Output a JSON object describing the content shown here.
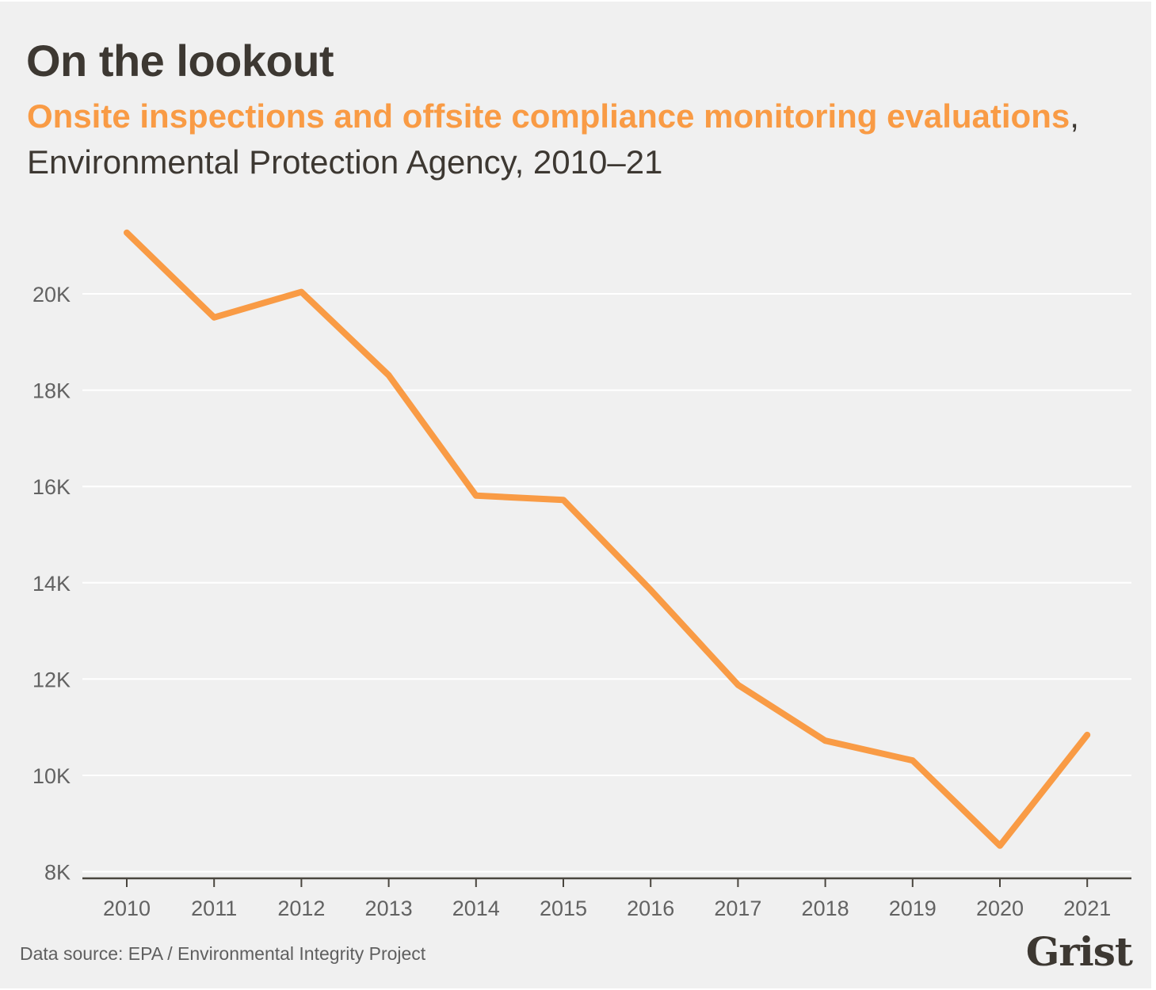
{
  "header": {
    "title": "On the lookout",
    "subtitle_highlight": "Onsite inspections and offsite compliance monitoring evaluations",
    "subtitle_rest": ", Environmental Protection Agency, 2010–21"
  },
  "footer": {
    "source": "Data source: EPA / Environmental Integrity Project",
    "logo": "Grist"
  },
  "colors": {
    "background": "#f0f0f0",
    "line": "#f99b45",
    "text": "#3d3832",
    "gridline": "#ffffff",
    "axis": "#4a463f"
  },
  "chart_data": {
    "type": "line",
    "title": "On the lookout",
    "subtitle": "Onsite inspections and offsite compliance monitoring evaluations, Environmental Protection Agency, 2010–21",
    "xlabel": "",
    "ylabel": "",
    "x": [
      "2010",
      "2011",
      "2012",
      "2013",
      "2014",
      "2015",
      "2016",
      "2017",
      "2018",
      "2019",
      "2020",
      "2021"
    ],
    "series": [
      {
        "name": "Onsite inspections and offsite compliance monitoring evaluations",
        "values": [
          21270,
          19510,
          20040,
          18310,
          15810,
          15720,
          13850,
          11880,
          10720,
          10310,
          8540,
          10840
        ]
      }
    ],
    "ylim": [
      7850,
      21500
    ],
    "yticks": [
      8000,
      10000,
      12000,
      14000,
      16000,
      18000,
      20000
    ],
    "ytick_labels": [
      "8K",
      "10K",
      "12K",
      "14K",
      "16K",
      "18K",
      "20K"
    ],
    "grid": true,
    "legend": "none",
    "source": "Data source: EPA / Environmental Integrity Project"
  }
}
